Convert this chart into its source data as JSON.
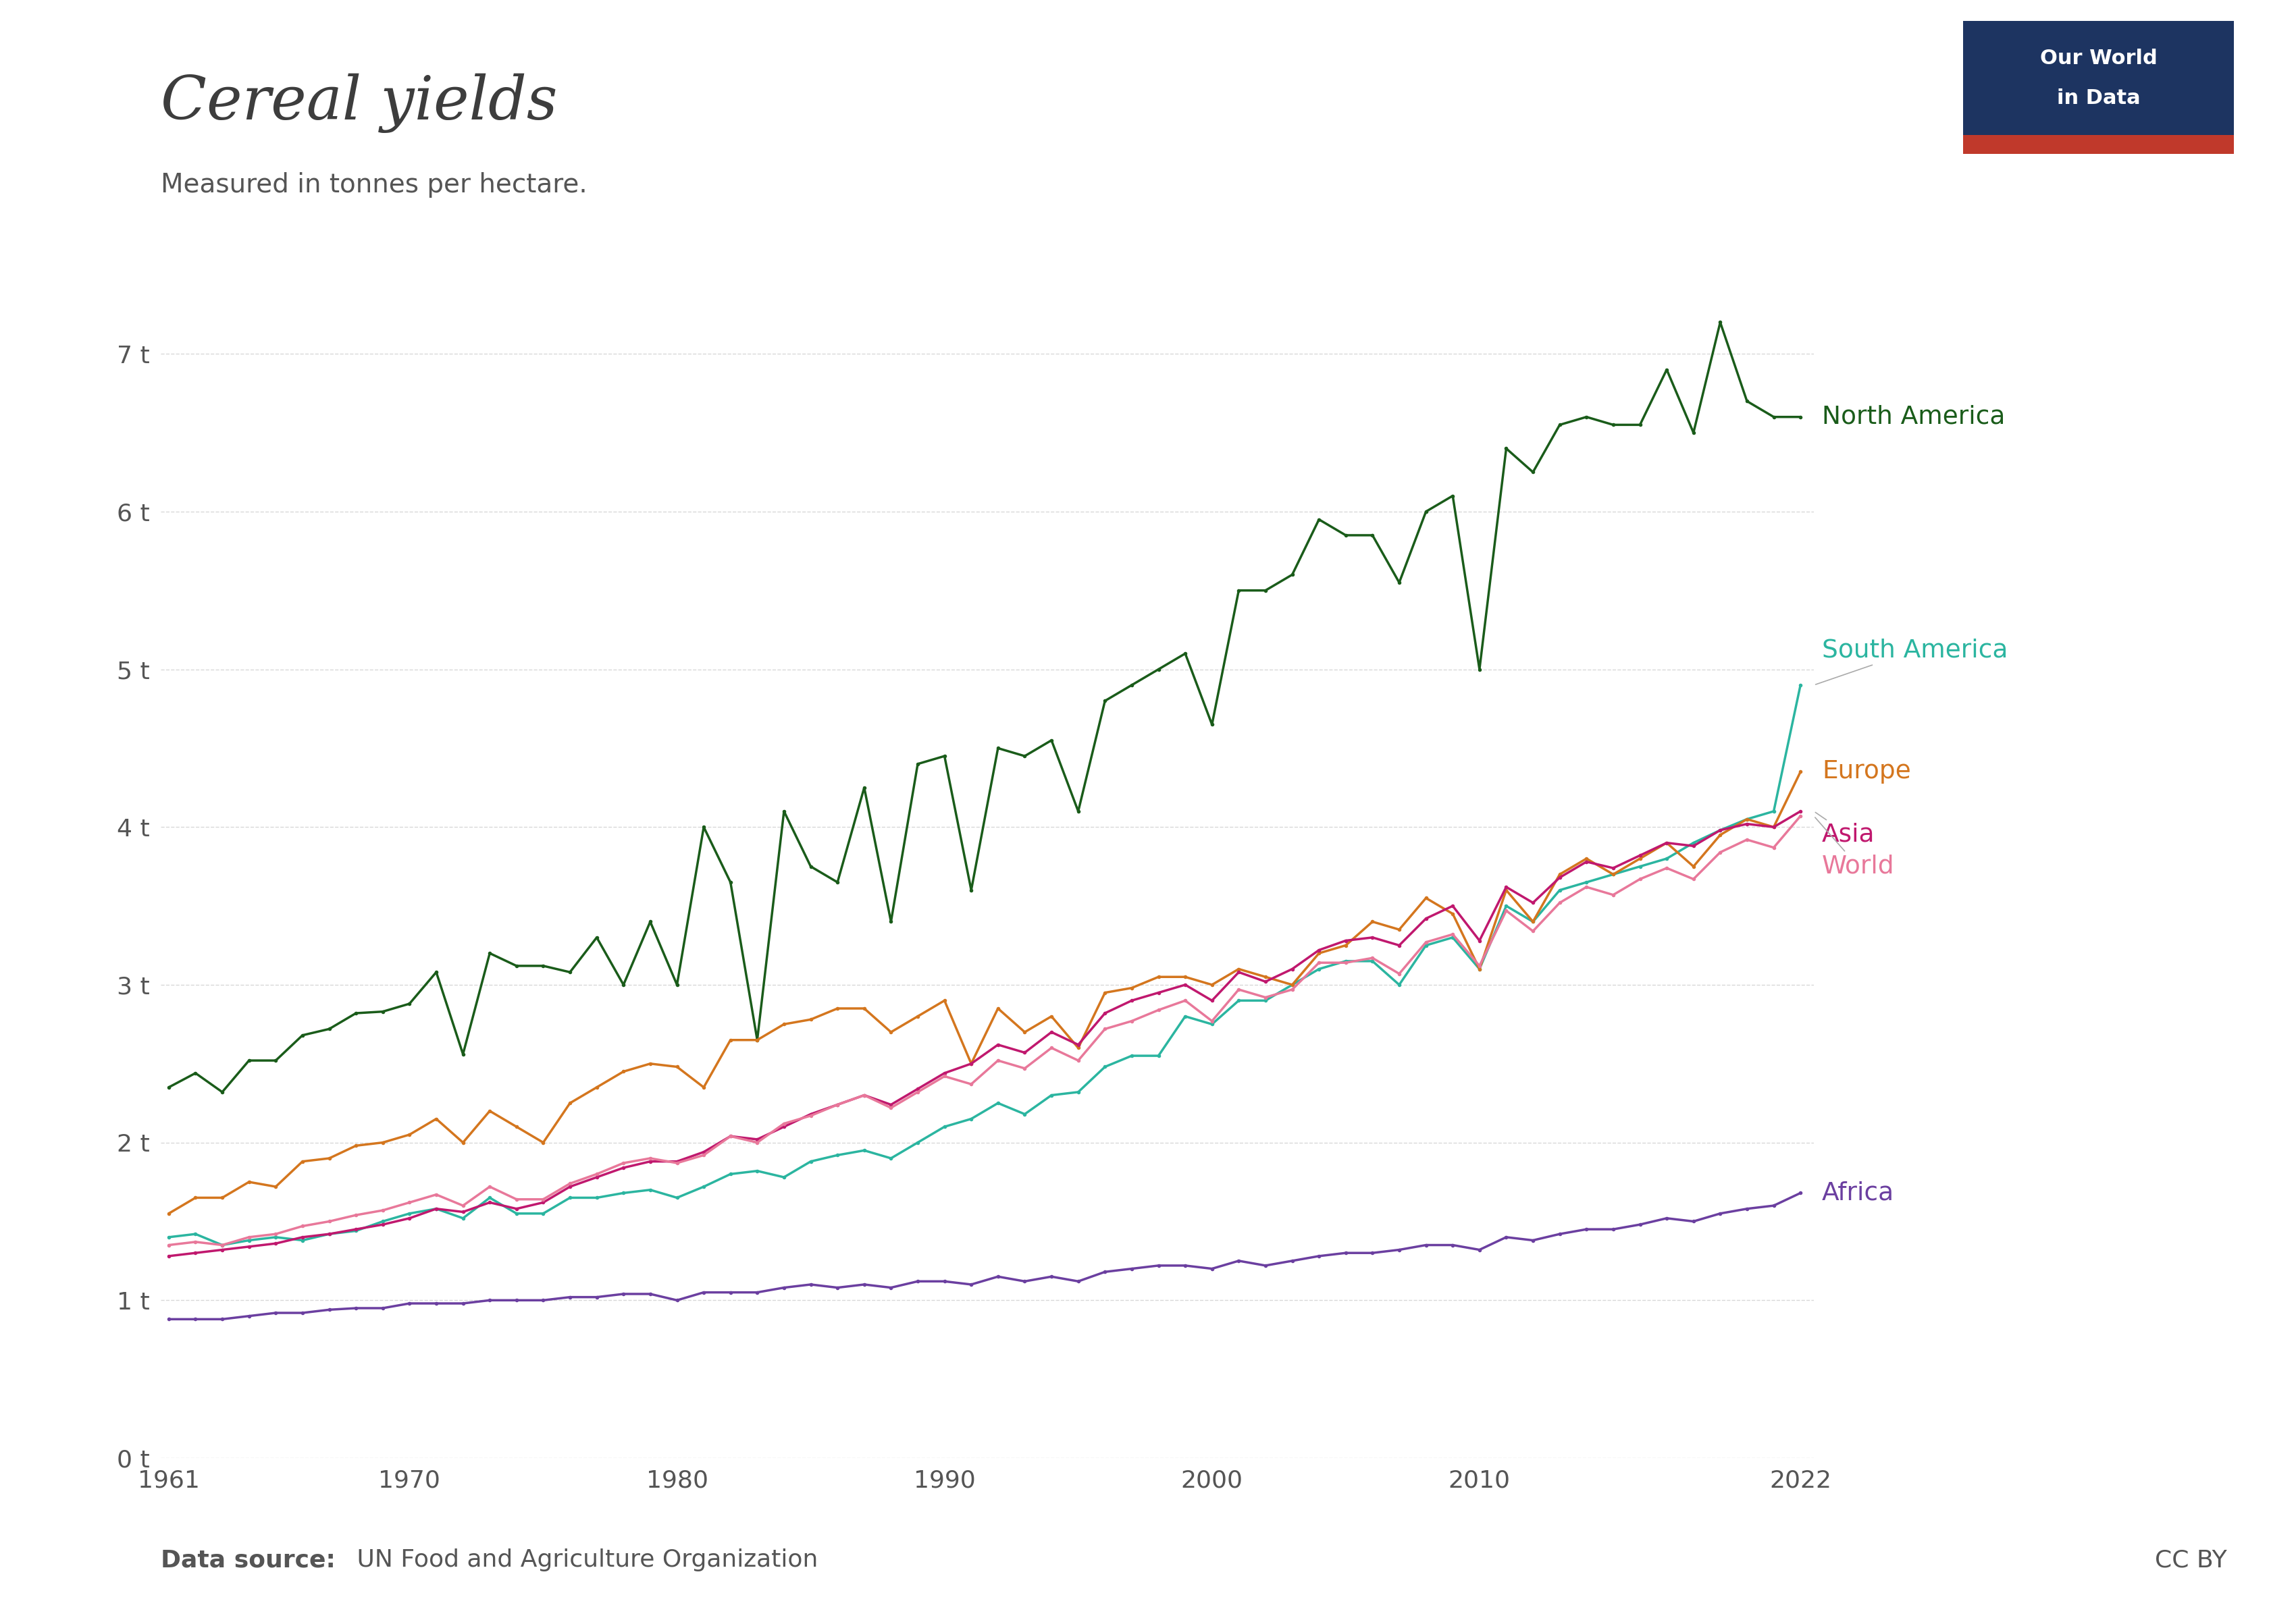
{
  "title": "Cereal yields",
  "subtitle": "Measured in tonnes per hectare.",
  "data_source_bold": "Data source:",
  "data_source_rest": " UN Food and Agriculture Organization",
  "cc_by": "CC BY",
  "logo_text_line1": "Our World",
  "logo_text_line2": "in Data",
  "logo_bg_color": "#1d3461",
  "logo_red_color": "#c0392b",
  "years": [
    1961,
    1962,
    1963,
    1964,
    1965,
    1966,
    1967,
    1968,
    1969,
    1970,
    1971,
    1972,
    1973,
    1974,
    1975,
    1976,
    1977,
    1978,
    1979,
    1980,
    1981,
    1982,
    1983,
    1984,
    1985,
    1986,
    1987,
    1988,
    1989,
    1990,
    1991,
    1992,
    1993,
    1994,
    1995,
    1996,
    1997,
    1998,
    1999,
    2000,
    2001,
    2002,
    2003,
    2004,
    2005,
    2006,
    2007,
    2008,
    2009,
    2010,
    2011,
    2012,
    2013,
    2014,
    2015,
    2016,
    2017,
    2018,
    2019,
    2020,
    2021,
    2022
  ],
  "north_america": [
    2.35,
    2.44,
    2.32,
    2.52,
    2.52,
    2.68,
    2.72,
    2.82,
    2.83,
    2.88,
    3.08,
    2.56,
    3.2,
    3.12,
    3.12,
    3.08,
    3.3,
    3.0,
    3.4,
    3.0,
    4.0,
    3.65,
    2.65,
    4.1,
    3.75,
    3.65,
    4.25,
    3.4,
    4.4,
    4.45,
    3.6,
    4.5,
    4.45,
    4.55,
    4.1,
    4.8,
    4.9,
    5.0,
    5.1,
    4.65,
    5.5,
    5.5,
    5.6,
    5.95,
    5.85,
    5.85,
    5.55,
    6.0,
    6.1,
    5.0,
    6.4,
    6.25,
    6.55,
    6.6,
    6.55,
    6.55,
    6.9,
    6.5,
    7.2,
    6.7,
    6.6,
    6.6
  ],
  "south_america": [
    1.4,
    1.42,
    1.35,
    1.38,
    1.4,
    1.38,
    1.42,
    1.44,
    1.5,
    1.55,
    1.58,
    1.52,
    1.65,
    1.55,
    1.55,
    1.65,
    1.65,
    1.68,
    1.7,
    1.65,
    1.72,
    1.8,
    1.82,
    1.78,
    1.88,
    1.92,
    1.95,
    1.9,
    2.0,
    2.1,
    2.15,
    2.25,
    2.18,
    2.3,
    2.32,
    2.48,
    2.55,
    2.55,
    2.8,
    2.75,
    2.9,
    2.9,
    3.0,
    3.1,
    3.15,
    3.15,
    3.0,
    3.25,
    3.3,
    3.1,
    3.5,
    3.4,
    3.6,
    3.65,
    3.7,
    3.75,
    3.8,
    3.9,
    3.98,
    4.05,
    4.1,
    4.9
  ],
  "europe": [
    1.55,
    1.65,
    1.65,
    1.75,
    1.72,
    1.88,
    1.9,
    1.98,
    2.0,
    2.05,
    2.15,
    2.0,
    2.2,
    2.1,
    2.0,
    2.25,
    2.35,
    2.45,
    2.5,
    2.48,
    2.35,
    2.65,
    2.65,
    2.75,
    2.78,
    2.85,
    2.85,
    2.7,
    2.8,
    2.9,
    2.5,
    2.85,
    2.7,
    2.8,
    2.6,
    2.95,
    2.98,
    3.05,
    3.05,
    3.0,
    3.1,
    3.05,
    3.0,
    3.2,
    3.25,
    3.4,
    3.35,
    3.55,
    3.45,
    3.1,
    3.6,
    3.4,
    3.7,
    3.8,
    3.7,
    3.8,
    3.9,
    3.75,
    3.95,
    4.05,
    4.0,
    4.35
  ],
  "asia": [
    1.28,
    1.3,
    1.32,
    1.34,
    1.36,
    1.4,
    1.42,
    1.45,
    1.48,
    1.52,
    1.58,
    1.56,
    1.62,
    1.58,
    1.62,
    1.72,
    1.78,
    1.84,
    1.88,
    1.88,
    1.94,
    2.04,
    2.02,
    2.1,
    2.18,
    2.24,
    2.3,
    2.24,
    2.34,
    2.44,
    2.5,
    2.62,
    2.57,
    2.7,
    2.62,
    2.82,
    2.9,
    2.95,
    3.0,
    2.9,
    3.08,
    3.02,
    3.1,
    3.22,
    3.28,
    3.3,
    3.25,
    3.42,
    3.5,
    3.28,
    3.62,
    3.52,
    3.68,
    3.78,
    3.74,
    3.82,
    3.9,
    3.88,
    3.98,
    4.02,
    4.0,
    4.1
  ],
  "world": [
    1.35,
    1.37,
    1.35,
    1.4,
    1.42,
    1.47,
    1.5,
    1.54,
    1.57,
    1.62,
    1.67,
    1.6,
    1.72,
    1.64,
    1.64,
    1.74,
    1.8,
    1.87,
    1.9,
    1.87,
    1.92,
    2.04,
    2.0,
    2.12,
    2.17,
    2.24,
    2.3,
    2.22,
    2.32,
    2.42,
    2.37,
    2.52,
    2.47,
    2.6,
    2.52,
    2.72,
    2.77,
    2.84,
    2.9,
    2.77,
    2.97,
    2.92,
    2.97,
    3.14,
    3.14,
    3.17,
    3.07,
    3.27,
    3.32,
    3.12,
    3.47,
    3.34,
    3.52,
    3.62,
    3.57,
    3.67,
    3.74,
    3.67,
    3.84,
    3.92,
    3.87,
    4.07
  ],
  "africa": [
    0.88,
    0.88,
    0.88,
    0.9,
    0.92,
    0.92,
    0.94,
    0.95,
    0.95,
    0.98,
    0.98,
    0.98,
    1.0,
    1.0,
    1.0,
    1.02,
    1.02,
    1.04,
    1.04,
    1.0,
    1.05,
    1.05,
    1.05,
    1.08,
    1.1,
    1.08,
    1.1,
    1.08,
    1.12,
    1.12,
    1.1,
    1.15,
    1.12,
    1.15,
    1.12,
    1.18,
    1.2,
    1.22,
    1.22,
    1.2,
    1.25,
    1.22,
    1.25,
    1.28,
    1.3,
    1.3,
    1.32,
    1.35,
    1.35,
    1.32,
    1.4,
    1.38,
    1.42,
    1.45,
    1.45,
    1.48,
    1.52,
    1.5,
    1.55,
    1.58,
    1.6,
    1.68
  ],
  "colors": {
    "north_america": "#1a5c1a",
    "south_america": "#2bb5a0",
    "europe": "#d4761e",
    "asia": "#c0186e",
    "world": "#e8789a",
    "africa": "#6b3fa0"
  },
  "line_labels": {
    "north_america": "North America",
    "south_america": "South America",
    "europe": "Europe",
    "asia": "Asia",
    "world": "World",
    "africa": "Africa"
  },
  "label_y_offsets": {
    "north_america": 0.0,
    "south_america": 0.22,
    "europe": 0.0,
    "asia": -0.15,
    "world": -0.32,
    "africa": 0.0
  },
  "yticks": [
    0,
    1,
    2,
    3,
    4,
    5,
    6,
    7
  ],
  "ytick_labels": [
    "0 t",
    "1 t",
    "2 t",
    "3 t",
    "4 t",
    "5 t",
    "6 t",
    "7 t"
  ],
  "xlim": [
    1961,
    2022
  ],
  "ylim": [
    0,
    7.6
  ],
  "xticks": [
    1961,
    1970,
    1980,
    1990,
    2000,
    2010,
    2022
  ],
  "background_color": "#ffffff",
  "grid_color": "#d8d8d8",
  "text_color": "#555555",
  "title_color": "#3d3d3d",
  "marker": "o",
  "markersize": 4,
  "linewidth": 2.5
}
